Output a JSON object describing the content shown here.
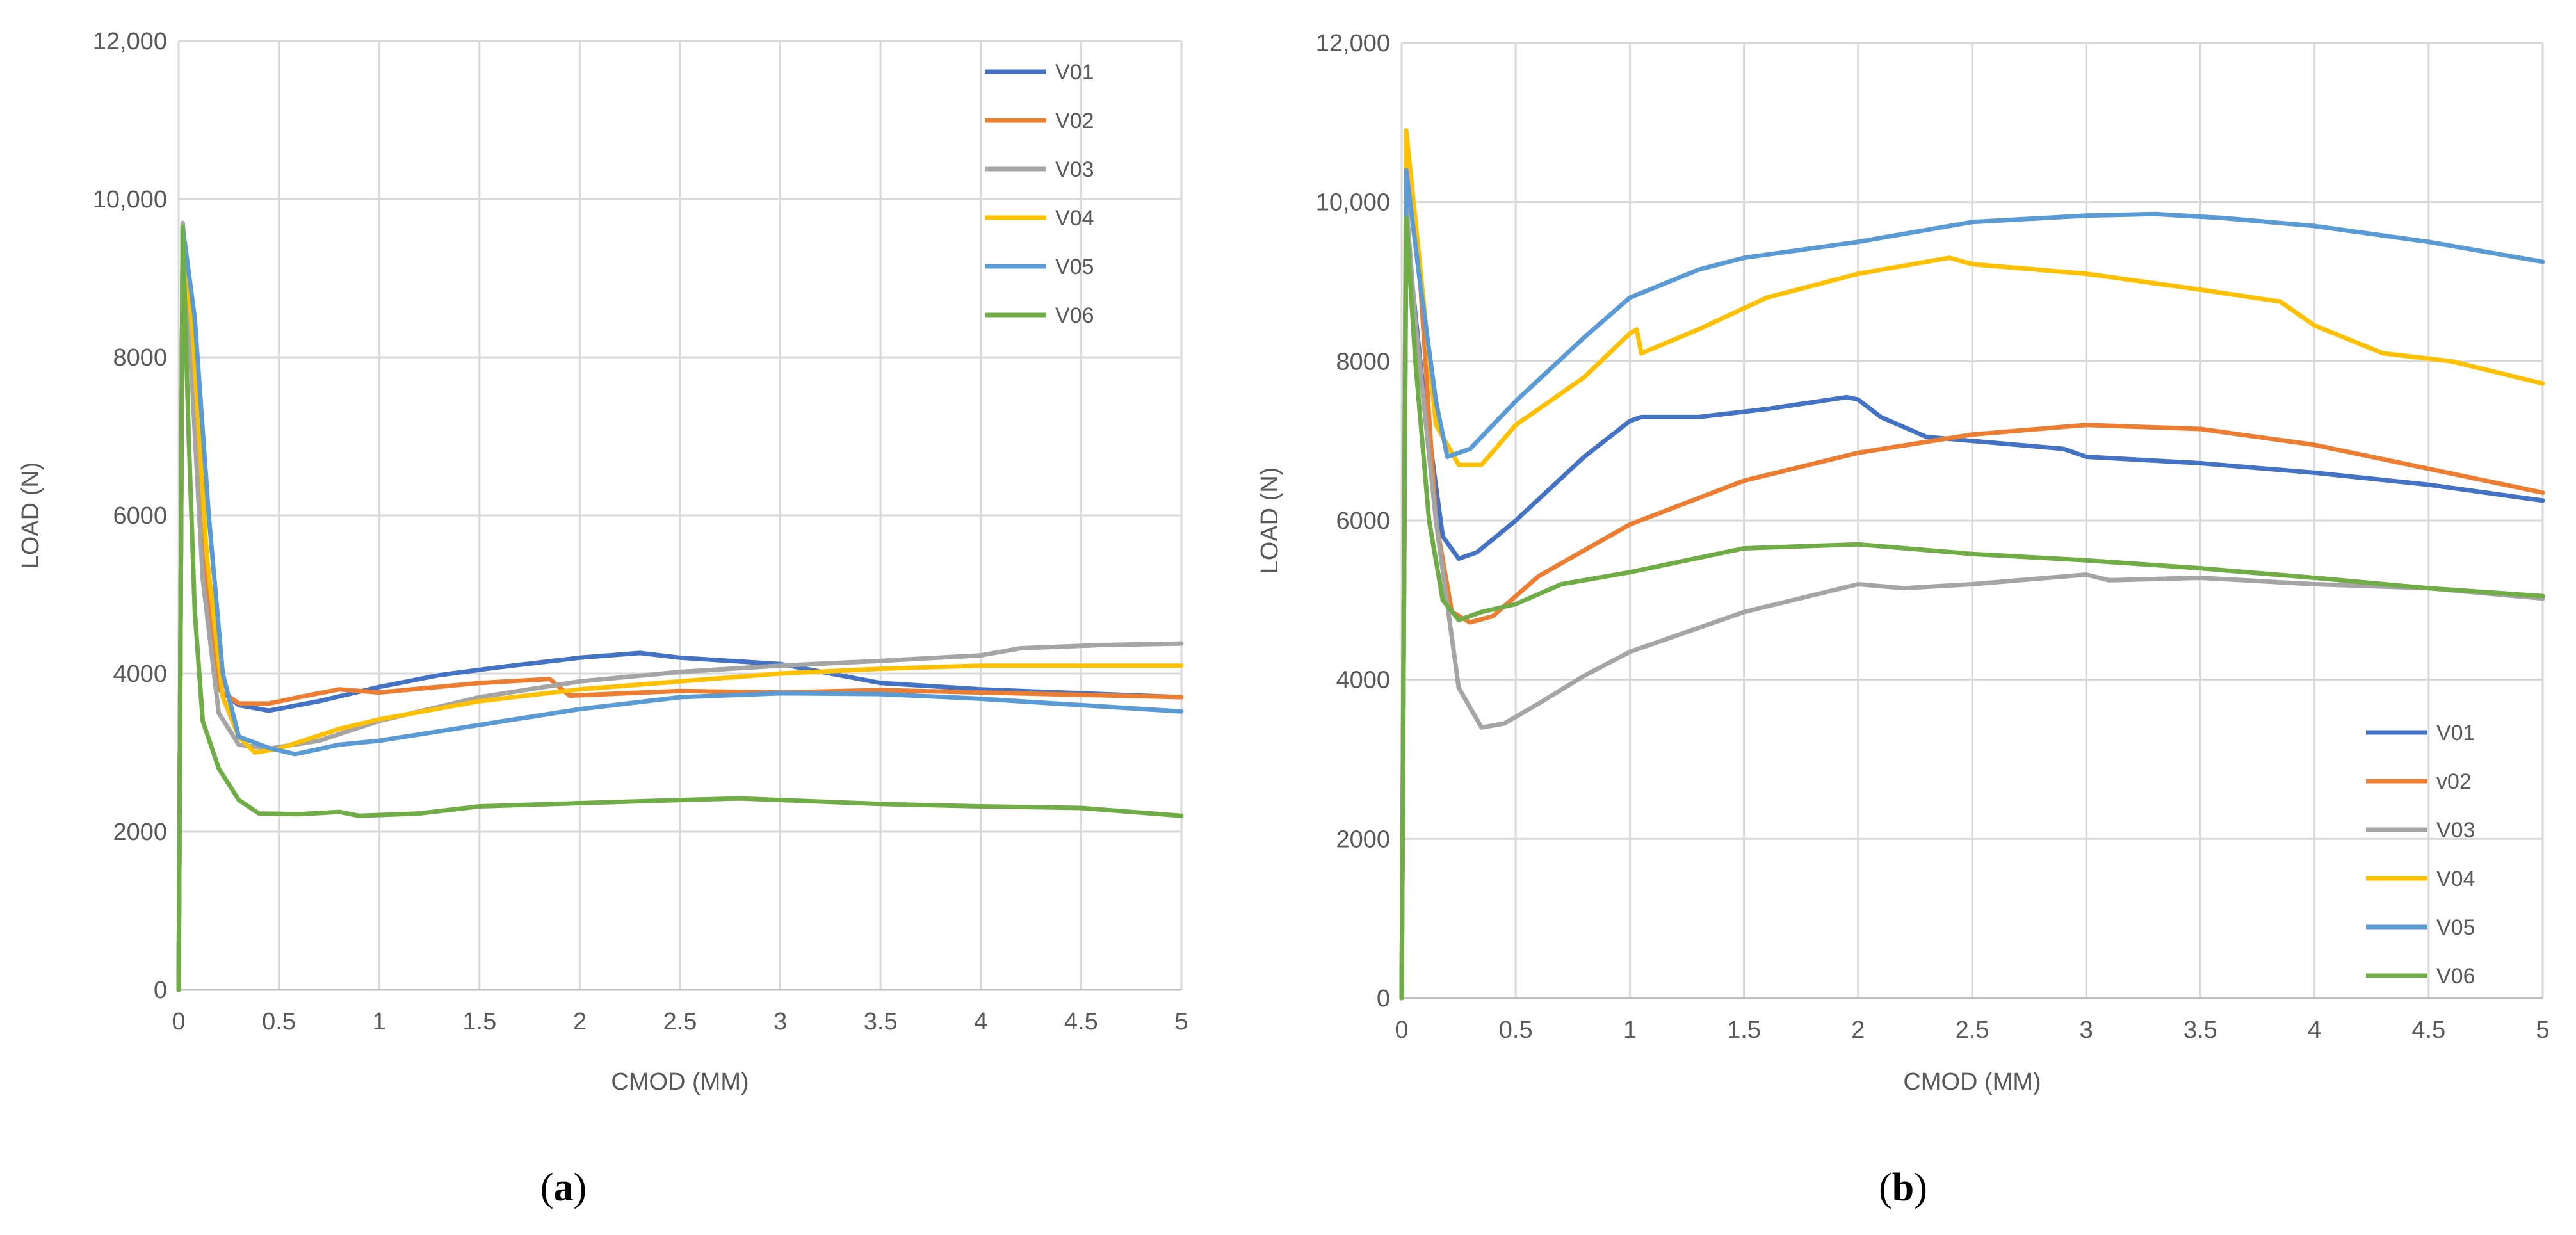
{
  "chart_data": [
    {
      "type": "line",
      "caption": "a",
      "title": "",
      "xlabel": "CMOD (MM)",
      "ylabel": "LOAD (N)",
      "xlim": [
        0,
        5
      ],
      "ylim": [
        0,
        12000
      ],
      "x_ticks": [
        "0",
        "0.5",
        "1",
        "1.5",
        "2",
        "2.5",
        "3",
        "3.5",
        "4",
        "4.5",
        "5"
      ],
      "y_ticks": [
        "0",
        "2000",
        "4000",
        "6000",
        "8000",
        "10,000",
        "12,000"
      ],
      "grid": true,
      "legend_position": "top-right",
      "series": [
        {
          "name": "V01",
          "color": "#4472C4",
          "points": [
            [
              0,
              0
            ],
            [
              0.02,
              9600
            ],
            [
              0.06,
              8000
            ],
            [
              0.12,
              5500
            ],
            [
              0.2,
              3800
            ],
            [
              0.3,
              3600
            ],
            [
              0.45,
              3530
            ],
            [
              0.7,
              3650
            ],
            [
              1,
              3830
            ],
            [
              1.3,
              3980
            ],
            [
              1.6,
              4080
            ],
            [
              2,
              4200
            ],
            [
              2.3,
              4260
            ],
            [
              2.5,
              4200
            ],
            [
              3,
              4120
            ],
            [
              3.5,
              3880
            ],
            [
              4,
              3800
            ],
            [
              4.5,
              3750
            ],
            [
              5,
              3700
            ]
          ]
        },
        {
          "name": "V02",
          "color": "#ED7D31",
          "points": [
            [
              0,
              0
            ],
            [
              0.02,
              9650
            ],
            [
              0.06,
              8200
            ],
            [
              0.12,
              5500
            ],
            [
              0.2,
              3800
            ],
            [
              0.3,
              3620
            ],
            [
              0.45,
              3620
            ],
            [
              0.6,
              3700
            ],
            [
              0.8,
              3800
            ],
            [
              1,
              3760
            ],
            [
              1.5,
              3880
            ],
            [
              1.85,
              3930
            ],
            [
              1.95,
              3720
            ],
            [
              2.5,
              3780
            ],
            [
              3,
              3760
            ],
            [
              3.5,
              3790
            ],
            [
              4,
              3760
            ],
            [
              4.5,
              3730
            ],
            [
              5,
              3700
            ]
          ]
        },
        {
          "name": "V03",
          "color": "#A5A5A5",
          "points": [
            [
              0,
              0
            ],
            [
              0.02,
              9700
            ],
            [
              0.06,
              8000
            ],
            [
              0.12,
              5200
            ],
            [
              0.2,
              3500
            ],
            [
              0.3,
              3100
            ],
            [
              0.45,
              3050
            ],
            [
              0.7,
              3150
            ],
            [
              1,
              3400
            ],
            [
              1.5,
              3700
            ],
            [
              2,
              3900
            ],
            [
              2.5,
              4020
            ],
            [
              3,
              4100
            ],
            [
              3.5,
              4160
            ],
            [
              4,
              4230
            ],
            [
              4.2,
              4320
            ],
            [
              4.6,
              4360
            ],
            [
              5,
              4380
            ]
          ]
        },
        {
          "name": "V04",
          "color": "#FFC000",
          "points": [
            [
              0,
              0
            ],
            [
              0.02,
              9600
            ],
            [
              0.07,
              8300
            ],
            [
              0.14,
              5500
            ],
            [
              0.22,
              3700
            ],
            [
              0.3,
              3200
            ],
            [
              0.38,
              3000
            ],
            [
              0.5,
              3050
            ],
            [
              0.8,
              3300
            ],
            [
              1,
              3420
            ],
            [
              1.5,
              3650
            ],
            [
              2,
              3800
            ],
            [
              2.5,
              3900
            ],
            [
              3,
              4000
            ],
            [
              3.5,
              4060
            ],
            [
              4,
              4100
            ],
            [
              4.5,
              4100
            ],
            [
              5,
              4100
            ]
          ]
        },
        {
          "name": "V05",
          "color": "#5B9BD5",
          "points": [
            [
              0,
              0
            ],
            [
              0.02,
              9650
            ],
            [
              0.08,
              8500
            ],
            [
              0.15,
              6000
            ],
            [
              0.22,
              4000
            ],
            [
              0.3,
              3200
            ],
            [
              0.45,
              3060
            ],
            [
              0.58,
              2980
            ],
            [
              0.8,
              3100
            ],
            [
              1,
              3150
            ],
            [
              1.5,
              3350
            ],
            [
              2,
              3550
            ],
            [
              2.5,
              3700
            ],
            [
              3,
              3750
            ],
            [
              3.5,
              3740
            ],
            [
              4,
              3680
            ],
            [
              4.5,
              3600
            ],
            [
              5,
              3520
            ]
          ]
        },
        {
          "name": "V06",
          "color": "#70AD47",
          "points": [
            [
              0,
              0
            ],
            [
              0.02,
              9650
            ],
            [
              0.05,
              7000
            ],
            [
              0.08,
              4800
            ],
            [
              0.12,
              3400
            ],
            [
              0.2,
              2800
            ],
            [
              0.3,
              2400
            ],
            [
              0.4,
              2230
            ],
            [
              0.6,
              2220
            ],
            [
              0.8,
              2250
            ],
            [
              0.9,
              2200
            ],
            [
              1.2,
              2230
            ],
            [
              1.5,
              2320
            ],
            [
              2,
              2360
            ],
            [
              2.5,
              2400
            ],
            [
              2.8,
              2420
            ],
            [
              3,
              2400
            ],
            [
              3.5,
              2350
            ],
            [
              4,
              2320
            ],
            [
              4.5,
              2300
            ],
            [
              5,
              2200
            ]
          ]
        }
      ]
    },
    {
      "type": "line",
      "caption": "b",
      "title": "",
      "xlabel": "CMOD  (MM)",
      "ylabel": "LOAD (N)",
      "xlim": [
        0,
        5
      ],
      "ylim": [
        0,
        12000
      ],
      "x_ticks": [
        "0",
        "0.5",
        "1",
        "1.5",
        "2",
        "2.5",
        "3",
        "3.5",
        "4",
        "4.5",
        "5"
      ],
      "y_ticks": [
        "0",
        "2000",
        "4000",
        "6000",
        "8000",
        "10,000",
        "12,000"
      ],
      "grid": true,
      "legend_position": "bottom-right",
      "series": [
        {
          "name": "V01",
          "color": "#4472C4",
          "points": [
            [
              0,
              0
            ],
            [
              0.02,
              9700
            ],
            [
              0.1,
              7500
            ],
            [
              0.18,
              5800
            ],
            [
              0.25,
              5520
            ],
            [
              0.33,
              5600
            ],
            [
              0.5,
              6000
            ],
            [
              0.8,
              6800
            ],
            [
              1,
              7250
            ],
            [
              1.05,
              7300
            ],
            [
              1.3,
              7300
            ],
            [
              1.6,
              7400
            ],
            [
              1.95,
              7550
            ],
            [
              2,
              7520
            ],
            [
              2.1,
              7300
            ],
            [
              2.3,
              7050
            ],
            [
              2.5,
              7000
            ],
            [
              2.9,
              6900
            ],
            [
              3,
              6800
            ],
            [
              3.5,
              6720
            ],
            [
              4,
              6600
            ],
            [
              4.5,
              6450
            ],
            [
              5,
              6250
            ]
          ]
        },
        {
          "name": "v02",
          "color": "#ED7D31",
          "points": [
            [
              0,
              0
            ],
            [
              0.02,
              10600
            ],
            [
              0.07,
              9500
            ],
            [
              0.15,
              6000
            ],
            [
              0.22,
              4850
            ],
            [
              0.3,
              4720
            ],
            [
              0.4,
              4800
            ],
            [
              0.6,
              5300
            ],
            [
              1,
              5950
            ],
            [
              1.5,
              6500
            ],
            [
              2,
              6850
            ],
            [
              2.5,
              7080
            ],
            [
              3,
              7200
            ],
            [
              3.5,
              7150
            ],
            [
              4,
              6950
            ],
            [
              4.5,
              6650
            ],
            [
              5,
              6350
            ]
          ]
        },
        {
          "name": "V03",
          "color": "#A5A5A5",
          "points": [
            [
              0,
              0
            ],
            [
              0.02,
              10000
            ],
            [
              0.06,
              8500
            ],
            [
              0.15,
              6000
            ],
            [
              0.25,
              3900
            ],
            [
              0.35,
              3400
            ],
            [
              0.45,
              3450
            ],
            [
              0.6,
              3700
            ],
            [
              0.8,
              4050
            ],
            [
              1,
              4350
            ],
            [
              1.5,
              4850
            ],
            [
              2,
              5200
            ],
            [
              2.2,
              5150
            ],
            [
              2.5,
              5200
            ],
            [
              3,
              5320
            ],
            [
              3.1,
              5250
            ],
            [
              3.5,
              5280
            ],
            [
              4,
              5200
            ],
            [
              4.5,
              5150
            ],
            [
              5,
              5020
            ]
          ]
        },
        {
          "name": "V04",
          "color": "#FFC000",
          "points": [
            [
              0,
              0
            ],
            [
              0.02,
              10900
            ],
            [
              0.07,
              9500
            ],
            [
              0.15,
              7200
            ],
            [
              0.25,
              6700
            ],
            [
              0.35,
              6700
            ],
            [
              0.5,
              7200
            ],
            [
              0.8,
              7800
            ],
            [
              1,
              8350
            ],
            [
              1.03,
              8400
            ],
            [
              1.05,
              8100
            ],
            [
              1.3,
              8400
            ],
            [
              1.6,
              8800
            ],
            [
              2,
              9100
            ],
            [
              2.4,
              9300
            ],
            [
              2.5,
              9220
            ],
            [
              3,
              9100
            ],
            [
              3.5,
              8900
            ],
            [
              3.85,
              8750
            ],
            [
              4,
              8450
            ],
            [
              4.3,
              8100
            ],
            [
              4.6,
              8000
            ],
            [
              5,
              7720
            ]
          ]
        },
        {
          "name": "V05",
          "color": "#5B9BD5",
          "points": [
            [
              0,
              0
            ],
            [
              0.02,
              10400
            ],
            [
              0.08,
              9000
            ],
            [
              0.15,
              7500
            ],
            [
              0.2,
              6800
            ],
            [
              0.3,
              6900
            ],
            [
              0.5,
              7500
            ],
            [
              0.8,
              8300
            ],
            [
              1,
              8800
            ],
            [
              1.3,
              9150
            ],
            [
              1.5,
              9300
            ],
            [
              2,
              9500
            ],
            [
              2.5,
              9750
            ],
            [
              3,
              9830
            ],
            [
              3.3,
              9850
            ],
            [
              3.6,
              9800
            ],
            [
              4,
              9700
            ],
            [
              4.5,
              9500
            ],
            [
              5,
              9250
            ]
          ]
        },
        {
          "name": "V06",
          "color": "#70AD47",
          "points": [
            [
              0,
              0
            ],
            [
              0.02,
              9800
            ],
            [
              0.06,
              8000
            ],
            [
              0.12,
              6000
            ],
            [
              0.18,
              5000
            ],
            [
              0.25,
              4750
            ],
            [
              0.35,
              4850
            ],
            [
              0.5,
              4950
            ],
            [
              0.7,
              5200
            ],
            [
              1,
              5350
            ],
            [
              1.5,
              5650
            ],
            [
              2,
              5700
            ],
            [
              2.5,
              5580
            ],
            [
              3,
              5500
            ],
            [
              3.5,
              5400
            ],
            [
              4,
              5280
            ],
            [
              4.5,
              5150
            ],
            [
              5,
              5050
            ]
          ]
        }
      ]
    }
  ]
}
